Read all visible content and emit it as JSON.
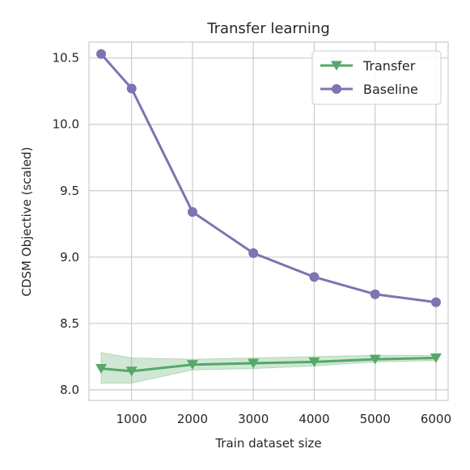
{
  "chart_data": {
    "type": "line",
    "title": "Transfer learning",
    "xlabel": "Train dataset size",
    "ylabel": "CDSM Objective (scaled)",
    "xlim": [
      300,
      6200
    ],
    "ylim": [
      7.92,
      10.62
    ],
    "xticks": [
      1000,
      2000,
      3000,
      4000,
      5000,
      6000
    ],
    "xtick_labels": [
      "1000",
      "2000",
      "3000",
      "4000",
      "5000",
      "6000"
    ],
    "yticks": [
      8.0,
      8.5,
      9.0,
      9.5,
      10.0,
      10.5
    ],
    "ytick_labels": [
      "8.0",
      "8.5",
      "9.0",
      "9.5",
      "10.0",
      "10.5"
    ],
    "grid": true,
    "legend_position": "top-right",
    "x": [
      500,
      1000,
      2000,
      3000,
      4000,
      5000,
      6000
    ],
    "series": [
      {
        "name": "Transfer",
        "marker": "triangle-down",
        "color": "#55a868",
        "values": [
          8.16,
          8.14,
          8.19,
          8.2,
          8.21,
          8.23,
          8.24
        ],
        "band_low": [
          8.05,
          8.05,
          8.15,
          8.16,
          8.18,
          8.21,
          8.22
        ],
        "band_high": [
          8.28,
          8.24,
          8.23,
          8.24,
          8.25,
          8.26,
          8.26
        ]
      },
      {
        "name": "Baseline",
        "marker": "circle",
        "color": "#8172b2",
        "values": [
          10.53,
          10.27,
          9.34,
          9.03,
          8.85,
          8.72,
          8.66
        ]
      }
    ]
  }
}
